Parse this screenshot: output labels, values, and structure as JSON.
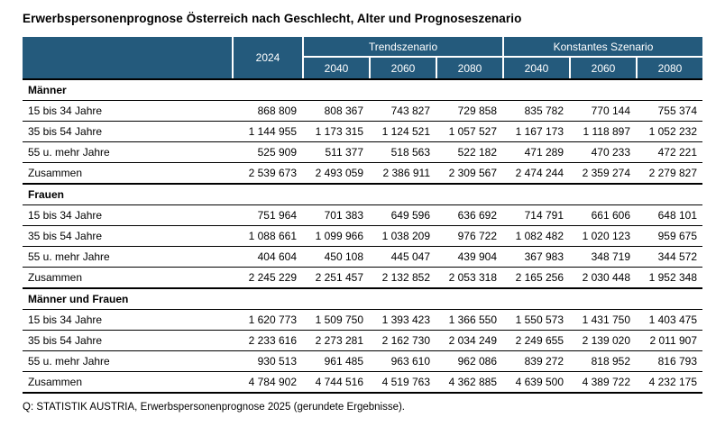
{
  "colors": {
    "header_bg": "#245A7C",
    "header_text": "#FFFFFF",
    "border": "#000000"
  },
  "chart_data": {
    "type": "table",
    "title": "Erwerbspersonenprognose Österreich nach Geschlecht, Alter und Prognoseszenario",
    "source": "Q: STATISTIK AUSTRIA, Erwerbspersonenprognose 2025 (gerundete Ergebnisse).",
    "base_year": "2024",
    "column_groups": [
      {
        "label": "Trendszenario",
        "years": [
          "2040",
          "2060",
          "2080"
        ]
      },
      {
        "label": "Konstantes Szenario",
        "years": [
          "2040",
          "2060",
          "2080"
        ]
      }
    ],
    "columns": [
      "2024",
      "Trendszenario 2040",
      "Trendszenario 2060",
      "Trendszenario 2080",
      "Konstantes Szenario 2040",
      "Konstantes Szenario 2060",
      "Konstantes Szenario 2080"
    ],
    "sections": [
      {
        "label": "Männer",
        "rows": [
          {
            "label": "15 bis 34 Jahre",
            "values": [
              868809,
              808367,
              743827,
              729858,
              835782,
              770144,
              755374
            ]
          },
          {
            "label": "35 bis 54 Jahre",
            "values": [
              1144955,
              1173315,
              1124521,
              1057527,
              1167173,
              1118897,
              1052232
            ]
          },
          {
            "label": "55 u. mehr Jahre",
            "values": [
              525909,
              511377,
              518563,
              522182,
              471289,
              470233,
              472221
            ]
          },
          {
            "label": "Zusammen",
            "values": [
              2539673,
              2493059,
              2386911,
              2309567,
              2474244,
              2359274,
              2279827
            ]
          }
        ]
      },
      {
        "label": "Frauen",
        "rows": [
          {
            "label": "15 bis 34 Jahre",
            "values": [
              751964,
              701383,
              649596,
              636692,
              714791,
              661606,
              648101
            ]
          },
          {
            "label": "35 bis 54 Jahre",
            "values": [
              1088661,
              1099966,
              1038209,
              976722,
              1082482,
              1020123,
              959675
            ]
          },
          {
            "label": "55 u. mehr Jahre",
            "values": [
              404604,
              450108,
              445047,
              439904,
              367983,
              348719,
              344572
            ]
          },
          {
            "label": "Zusammen",
            "values": [
              2245229,
              2251457,
              2132852,
              2053318,
              2165256,
              2030448,
              1952348
            ]
          }
        ]
      },
      {
        "label": "Männer und Frauen",
        "rows": [
          {
            "label": "15 bis 34 Jahre",
            "values": [
              1620773,
              1509750,
              1393423,
              1366550,
              1550573,
              1431750,
              1403475
            ]
          },
          {
            "label": "35 bis 54 Jahre",
            "values": [
              2233616,
              2273281,
              2162730,
              2034249,
              2249655,
              2139020,
              2011907
            ]
          },
          {
            "label": "55 u. mehr Jahre",
            "values": [
              930513,
              961485,
              963610,
              962086,
              839272,
              818952,
              816793
            ]
          },
          {
            "label": "Zusammen",
            "values": [
              4784902,
              4744516,
              4519763,
              4362885,
              4639500,
              4389722,
              4232175
            ]
          }
        ]
      }
    ]
  }
}
